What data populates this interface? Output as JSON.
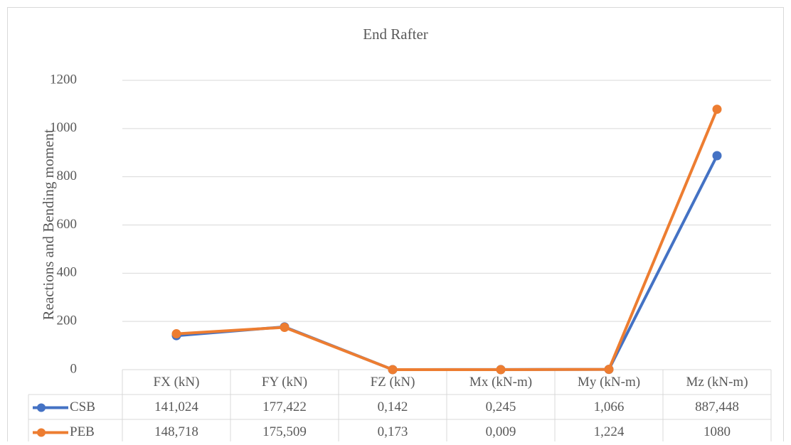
{
  "chart_data": {
    "type": "line",
    "title": "End Rafter",
    "y_label": "Reactions and Bending moment",
    "categories": [
      "FX (kN)",
      "FY (kN)",
      "FZ (kN)",
      "Mx (kN-m)",
      "My (kN-m)",
      "Mz (kN-m)"
    ],
    "series": [
      {
        "name": "CSB",
        "color": "#4472c4",
        "values": [
          141.024,
          177.422,
          0.142,
          0.245,
          1.066,
          887.448
        ],
        "value_labels": [
          "141,024",
          "177,422",
          "0,142",
          "0,245",
          "1,066",
          "887,448"
        ]
      },
      {
        "name": "PEB",
        "color": "#ed7d31",
        "values": [
          148.718,
          175.509,
          0.173,
          0.009,
          1.224,
          1080
        ],
        "value_labels": [
          "148,718",
          "175,509",
          "0,173",
          "0,009",
          "1,224",
          "1080"
        ]
      }
    ],
    "ylim": [
      0,
      1200
    ],
    "yticks": [
      0,
      200,
      400,
      600,
      800,
      1000,
      1200
    ],
    "grid": true,
    "legend": "table"
  }
}
